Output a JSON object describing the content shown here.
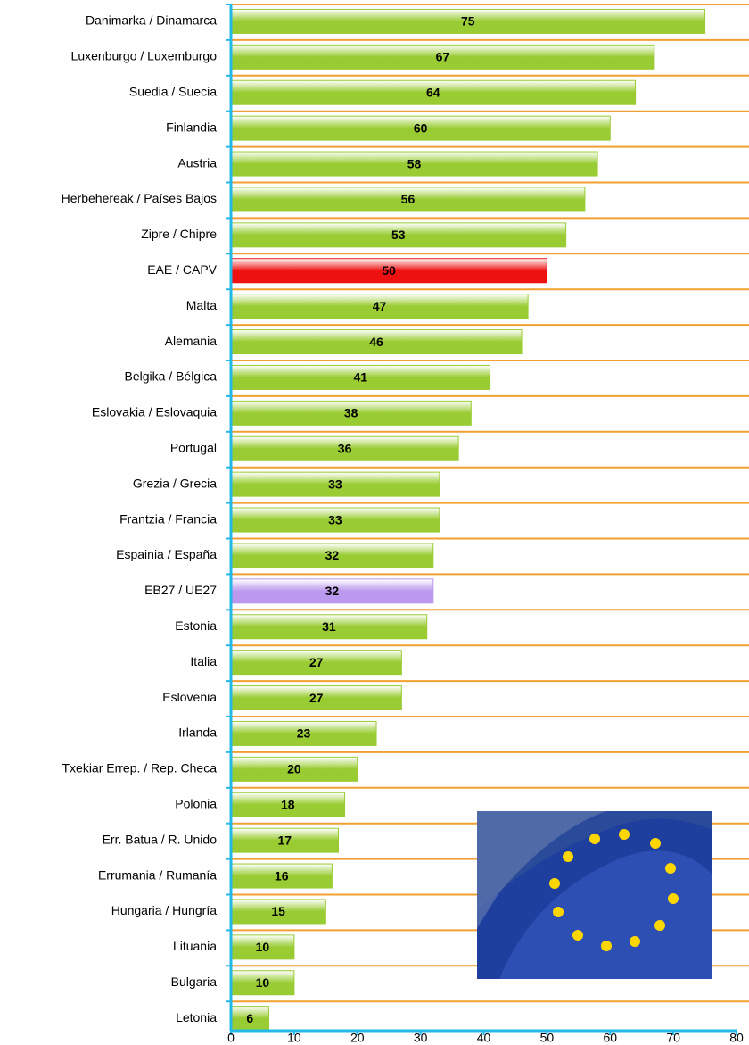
{
  "chart_data": {
    "type": "barh",
    "categories": [
      "Danimarka / Dinamarca",
      "Luxenburgo / Luxemburgo",
      "Suedia / Suecia",
      "Finlandia",
      "Austria",
      "Herbehereak / Países Bajos",
      "Zipre / Chipre",
      "EAE / CAPV",
      "Malta",
      "Alemania",
      "Belgika / Bélgica",
      "Eslovakia / Eslovaquia",
      "Portugal",
      "Grezia / Grecia",
      "Frantzia / Francia",
      "Espainia / España",
      "EB27 / UE27",
      "Estonia",
      "Italia",
      "Eslovenia",
      "Irlanda",
      "Txekiar Errep. / Rep. Checa",
      "Polonia",
      "Err. Batua / R. Unido",
      "Errumania / Rumanía",
      "Hungaria / Hungría",
      "Lituania",
      "Bulgaria",
      "Letonia"
    ],
    "values": [
      75,
      67,
      64,
      60,
      58,
      56,
      53,
      50,
      47,
      46,
      41,
      38,
      36,
      33,
      33,
      32,
      32,
      31,
      27,
      27,
      23,
      20,
      18,
      17,
      16,
      15,
      10,
      10,
      6
    ],
    "bar_colors": [
      "#99cc33",
      "#99cc33",
      "#99cc33",
      "#99cc33",
      "#99cc33",
      "#99cc33",
      "#99cc33",
      "#ee1111",
      "#99cc33",
      "#99cc33",
      "#99cc33",
      "#99cc33",
      "#99cc33",
      "#99cc33",
      "#99cc33",
      "#99cc33",
      "#bb99ee",
      "#99cc33",
      "#99cc33",
      "#99cc33",
      "#99cc33",
      "#99cc33",
      "#99cc33",
      "#99cc33",
      "#99cc33",
      "#99cc33",
      "#99cc33",
      "#99cc33",
      "#99cc33"
    ],
    "xlim": [
      0,
      80
    ],
    "xticks": [
      0,
      10,
      20,
      30,
      40,
      50,
      60,
      70,
      80
    ],
    "grid_color": "#f0a030",
    "axis_color": "#22b8e8"
  }
}
